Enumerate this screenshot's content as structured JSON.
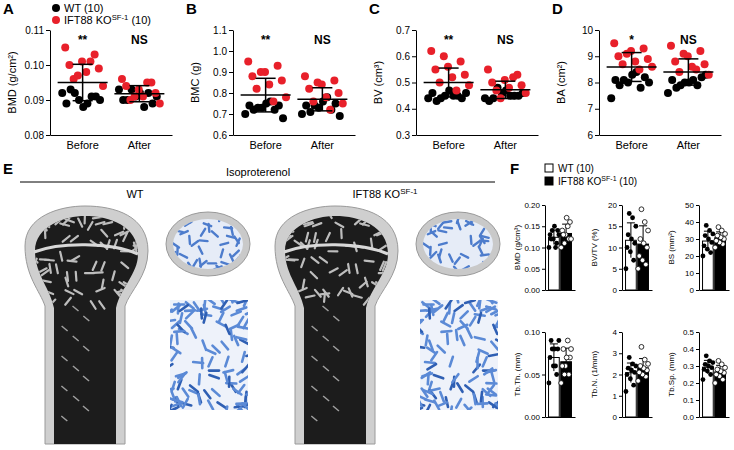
{
  "chart_data": [
    {
      "type": "scatter",
      "panel": "A",
      "y_label": "BMD (g/cm²)",
      "categories": [
        "Before",
        "After"
      ],
      "ylim": [
        0.08,
        0.11
      ],
      "yticks": [
        0.08,
        0.09,
        {
          "value": 0.1,
          "label": "0.10"
        },
        0.11
      ],
      "legend": "top",
      "series": [
        {
          "name": "WT (10)",
          "color": "#000000",
          "values": [
            [
              0.092,
              0.091,
              0.09,
              0.089,
              0.091,
              0.088,
              0.093,
              0.09,
              0.089,
              0.092
            ],
            [
              0.093,
              0.092,
              0.091,
              0.09,
              0.089,
              0.092,
              0.09,
              0.091,
              0.088,
              0.093
            ]
          ]
        },
        {
          "name": "IFT88 KO",
          "name_sup": "SF-1",
          "name_end": " (10)",
          "color": "#e8202a",
          "values": [
            [
              0.105,
              0.103,
              0.101,
              0.1,
              0.099,
              0.098,
              0.096,
              0.094,
              0.101,
              0.097
            ],
            [
              0.096,
              0.095,
              0.093,
              0.094,
              0.092,
              0.091,
              0.09,
              0.089,
              0.095,
              0.091
            ]
          ]
        }
      ],
      "mean": [
        0.095,
        0.0918
      ],
      "sd": [
        0.0052,
        0.0023
      ],
      "significance": [
        "**",
        "NS"
      ]
    },
    {
      "type": "scatter",
      "panel": "B",
      "y_label": "BMC (g)",
      "categories": [
        "Before",
        "After"
      ],
      "ylim": [
        0.6,
        1.1
      ],
      "yticks": [
        0.6,
        0.7,
        0.8,
        0.9,
        {
          "value": 1,
          "label": "1.0"
        },
        1.1
      ],
      "series": [
        {
          "color": "#000000",
          "values": [
            [
              0.7,
              0.72,
              0.73,
              0.74,
              0.74,
              0.75,
              0.72,
              0.68,
              0.76,
              0.73
            ],
            [
              0.7,
              0.72,
              0.73,
              0.74,
              0.75,
              0.76,
              0.71,
              0.69,
              0.78,
              0.74
            ]
          ]
        },
        {
          "color": "#e8202a",
          "values": [
            [
              0.95,
              0.93,
              0.9,
              0.88,
              0.86,
              0.84,
              0.82,
              0.78,
              0.76,
              0.9
            ],
            [
              0.88,
              0.86,
              0.84,
              0.82,
              0.8,
              0.78,
              0.76,
              0.75,
              0.72,
              0.85
            ]
          ]
        }
      ],
      "mean": [
        0.79,
        0.77
      ],
      "sd": [
        0.08,
        0.055
      ],
      "significance": [
        "**",
        "NS"
      ]
    },
    {
      "type": "scatter",
      "panel": "C",
      "y_label": "BV (cm³)",
      "categories": [
        "Before",
        "After"
      ],
      "ylim": [
        0.3,
        0.7
      ],
      "yticks": [
        0.3,
        0.4,
        0.5,
        0.6,
        0.7
      ],
      "series": [
        {
          "color": "#000000",
          "values": [
            [
              0.44,
              0.45,
              0.45,
              0.46,
              0.44,
              0.47,
              0.43,
              0.46,
              0.45,
              0.44
            ],
            [
              0.44,
              0.45,
              0.46,
              0.43,
              0.45,
              0.47,
              0.44,
              0.46,
              0.45,
              0.48
            ]
          ]
        },
        {
          "color": "#e8202a",
          "values": [
            [
              0.62,
              0.58,
              0.56,
              0.55,
              0.53,
              0.52,
              0.5,
              0.49,
              0.47,
              0.6
            ],
            [
              0.55,
              0.53,
              0.51,
              0.5,
              0.49,
              0.48,
              0.47,
              0.46,
              0.52,
              0.44
            ]
          ]
        }
      ],
      "mean": [
        0.5,
        0.472
      ],
      "sd": [
        0.055,
        0.033
      ],
      "significance": [
        "**",
        "NS"
      ]
    },
    {
      "type": "scatter",
      "panel": "D",
      "y_label": "BA (cm²)",
      "categories": [
        "Before",
        "After"
      ],
      "ylim": [
        6,
        10
      ],
      "yticks": [
        6,
        7,
        8,
        9,
        10
      ],
      "series": [
        {
          "color": "#000000",
          "values": [
            [
              7.4,
              7.8,
              8.0,
              8.1,
              8.2,
              8.3,
              7.9,
              8.0,
              8.4,
              8.1
            ],
            [
              7.6,
              7.9,
              8.0,
              8.1,
              8.2,
              8.0,
              7.8,
              8.3,
              8.1,
              7.9
            ]
          ]
        },
        {
          "color": "#e8202a",
          "values": [
            [
              9.5,
              9.3,
              9.2,
              9.0,
              8.9,
              8.8,
              8.7,
              8.6,
              8.5,
              9.1
            ],
            [
              9.4,
              9.2,
              9.0,
              8.8,
              8.7,
              8.6,
              8.4,
              8.3,
              8.5,
              9.1
            ]
          ]
        }
      ],
      "mean": [
        8.59,
        8.4
      ],
      "sd": [
        0.55,
        0.5
      ],
      "significance": [
        "*",
        "NS"
      ]
    },
    {
      "type": "bar",
      "panel": "F",
      "legend": "top",
      "y_label": "BMD (g/cm³)",
      "categories": [
        null
      ],
      "ylim": [
        0,
        0.2
      ],
      "yticks": [
        {
          "value": 0,
          "label": "0.00"
        },
        0.05,
        {
          "value": 0.1,
          "label": "0.10"
        },
        0.15,
        {
          "value": 0.2,
          "label": "0.20"
        }
      ],
      "series": [
        {
          "name": "WT (10)",
          "color": "#ffffff",
          "marker": "filled",
          "values": [
            0.124
          ],
          "sd": [
            0.017
          ],
          "points": [
            [
              0.1,
              0.11,
              0.12,
              0.13,
              0.14,
              0.15,
              0.12,
              0.13,
              0.1,
              0.14
            ]
          ]
        },
        {
          "name": "IFT88 KO",
          "name_sup": "SF-1",
          "name_end": " (10)",
          "color": "#000000",
          "marker": "open",
          "values": [
            0.133
          ],
          "sd": [
            0.022
          ],
          "points": [
            [
              0.1,
              0.12,
              0.13,
              0.14,
              0.16,
              0.17,
              0.13,
              0.12,
              0.15,
              0.11
            ]
          ]
        }
      ]
    },
    {
      "type": "bar",
      "y_label": "BV/TV (%)",
      "categories": [
        null
      ],
      "ylim": [
        0,
        20
      ],
      "yticks": [
        0,
        5,
        10,
        15,
        20
      ],
      "series": [
        {
          "color": "#ffffff",
          "marker": "filled",
          "values": [
            11.7
          ],
          "sd": [
            4.1
          ],
          "points": [
            [
              5,
              7,
              9,
              10,
              11,
              12,
              13,
              15,
              17,
              18
            ]
          ]
        },
        {
          "color": "#000000",
          "marker": "open",
          "values": [
            10.8
          ],
          "sd": [
            4.3
          ],
          "points": [
            [
              5,
              6,
              7,
              8,
              10,
              11,
              12,
              14,
              16,
              19
            ]
          ]
        }
      ]
    },
    {
      "type": "bar",
      "y_label": "BS (mm²)",
      "categories": [
        null
      ],
      "ylim": [
        0,
        50
      ],
      "yticks": [
        0,
        10,
        20,
        30,
        40,
        50
      ],
      "series": [
        {
          "color": "#ffffff",
          "marker": "filled",
          "values": [
            28.8
          ],
          "sd": [
            5.8
          ],
          "points": [
            [
              20,
              22,
              24,
              26,
              28,
              30,
              32,
              33,
              35,
              38
            ]
          ]
        },
        {
          "color": "#000000",
          "marker": "open",
          "values": [
            30.7
          ],
          "sd": [
            3.5
          ],
          "points": [
            [
              25,
              27,
              28,
              29,
              30,
              31,
              32,
              33,
              35,
              37
            ]
          ]
        }
      ]
    },
    {
      "type": "bar",
      "y_label": "Tb.Th. (mm)",
      "categories": [
        null
      ],
      "ylim": [
        0,
        0.1
      ],
      "yticks": [
        {
          "value": 0,
          "label": "0.00"
        },
        0.05,
        {
          "value": 0.1,
          "label": "0.10"
        }
      ],
      "series": [
        {
          "color": "#ffffff",
          "marker": "filled",
          "values": [
            0.07
          ],
          "sd": [
            0.016
          ],
          "points": [
            [
              0.04,
              0.05,
              0.06,
              0.07,
              0.08,
              0.08,
              0.09,
              0.09,
              0.06,
              0.08
            ]
          ]
        },
        {
          "color": "#000000",
          "marker": "open",
          "values": [
            0.065
          ],
          "sd": [
            0.016
          ],
          "points": [
            [
              0.04,
              0.05,
              0.06,
              0.06,
              0.07,
              0.07,
              0.08,
              0.08,
              0.09,
              0.05
            ]
          ]
        }
      ]
    },
    {
      "type": "bar",
      "y_label": "Tb.N. (1/mm)",
      "categories": [
        null
      ],
      "ylim": [
        0,
        4
      ],
      "yticks": [
        0,
        1,
        2,
        3,
        4
      ],
      "series": [
        {
          "color": "#ffffff",
          "marker": "filled",
          "values": [
            2.08
          ],
          "sd": [
            0.46
          ],
          "points": [
            [
              1.2,
              1.5,
              1.8,
              2.0,
              2.1,
              2.2,
              2.3,
              2.4,
              2.5,
              2.8
            ]
          ]
        },
        {
          "color": "#000000",
          "marker": "open",
          "values": [
            2.31
          ],
          "sd": [
            0.44
          ],
          "points": [
            [
              1.7,
              1.9,
              2.0,
              2.1,
              2.2,
              2.3,
              2.4,
              2.5,
              2.7,
              3.3
            ]
          ]
        }
      ]
    },
    {
      "type": "bar",
      "y_label": "Tb.Sp. (mm)",
      "categories": [
        null
      ],
      "ylim": [
        0,
        0.5
      ],
      "yticks": [
        {
          "value": 0,
          "label": "0.0"
        },
        0.1,
        0.2,
        0.3,
        0.4,
        0.5
      ],
      "series": [
        {
          "color": "#ffffff",
          "marker": "filled",
          "values": [
            0.293
          ],
          "sd": [
            0.04
          ],
          "points": [
            [
              0.22,
              0.25,
              0.27,
              0.28,
              0.29,
              0.3,
              0.31,
              0.32,
              0.33,
              0.36
            ]
          ]
        },
        {
          "color": "#000000",
          "marker": "open",
          "values": [
            0.265
          ],
          "sd": [
            0.039
          ],
          "points": [
            [
              0.2,
              0.22,
              0.24,
              0.25,
              0.26,
              0.27,
              0.28,
              0.29,
              0.31,
              0.33
            ]
          ]
        }
      ]
    }
  ],
  "image_panel": {
    "panel": "E",
    "title": "Isoproterenol",
    "groups": [
      {
        "label": "WT"
      },
      {
        "label": "IFT88 KO",
        "label_sup": "SF-1"
      }
    ]
  }
}
